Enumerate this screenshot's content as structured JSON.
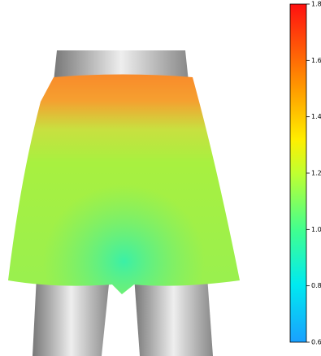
{
  "chart_data": {
    "type": "colorbar",
    "clim": [
      0.6,
      1.8
    ],
    "cticks": [
      0.6,
      0.8,
      {
        "value": 1,
        "label": "1.0"
      },
      1.2,
      1.4,
      1.6,
      1.8
    ]
  }
}
